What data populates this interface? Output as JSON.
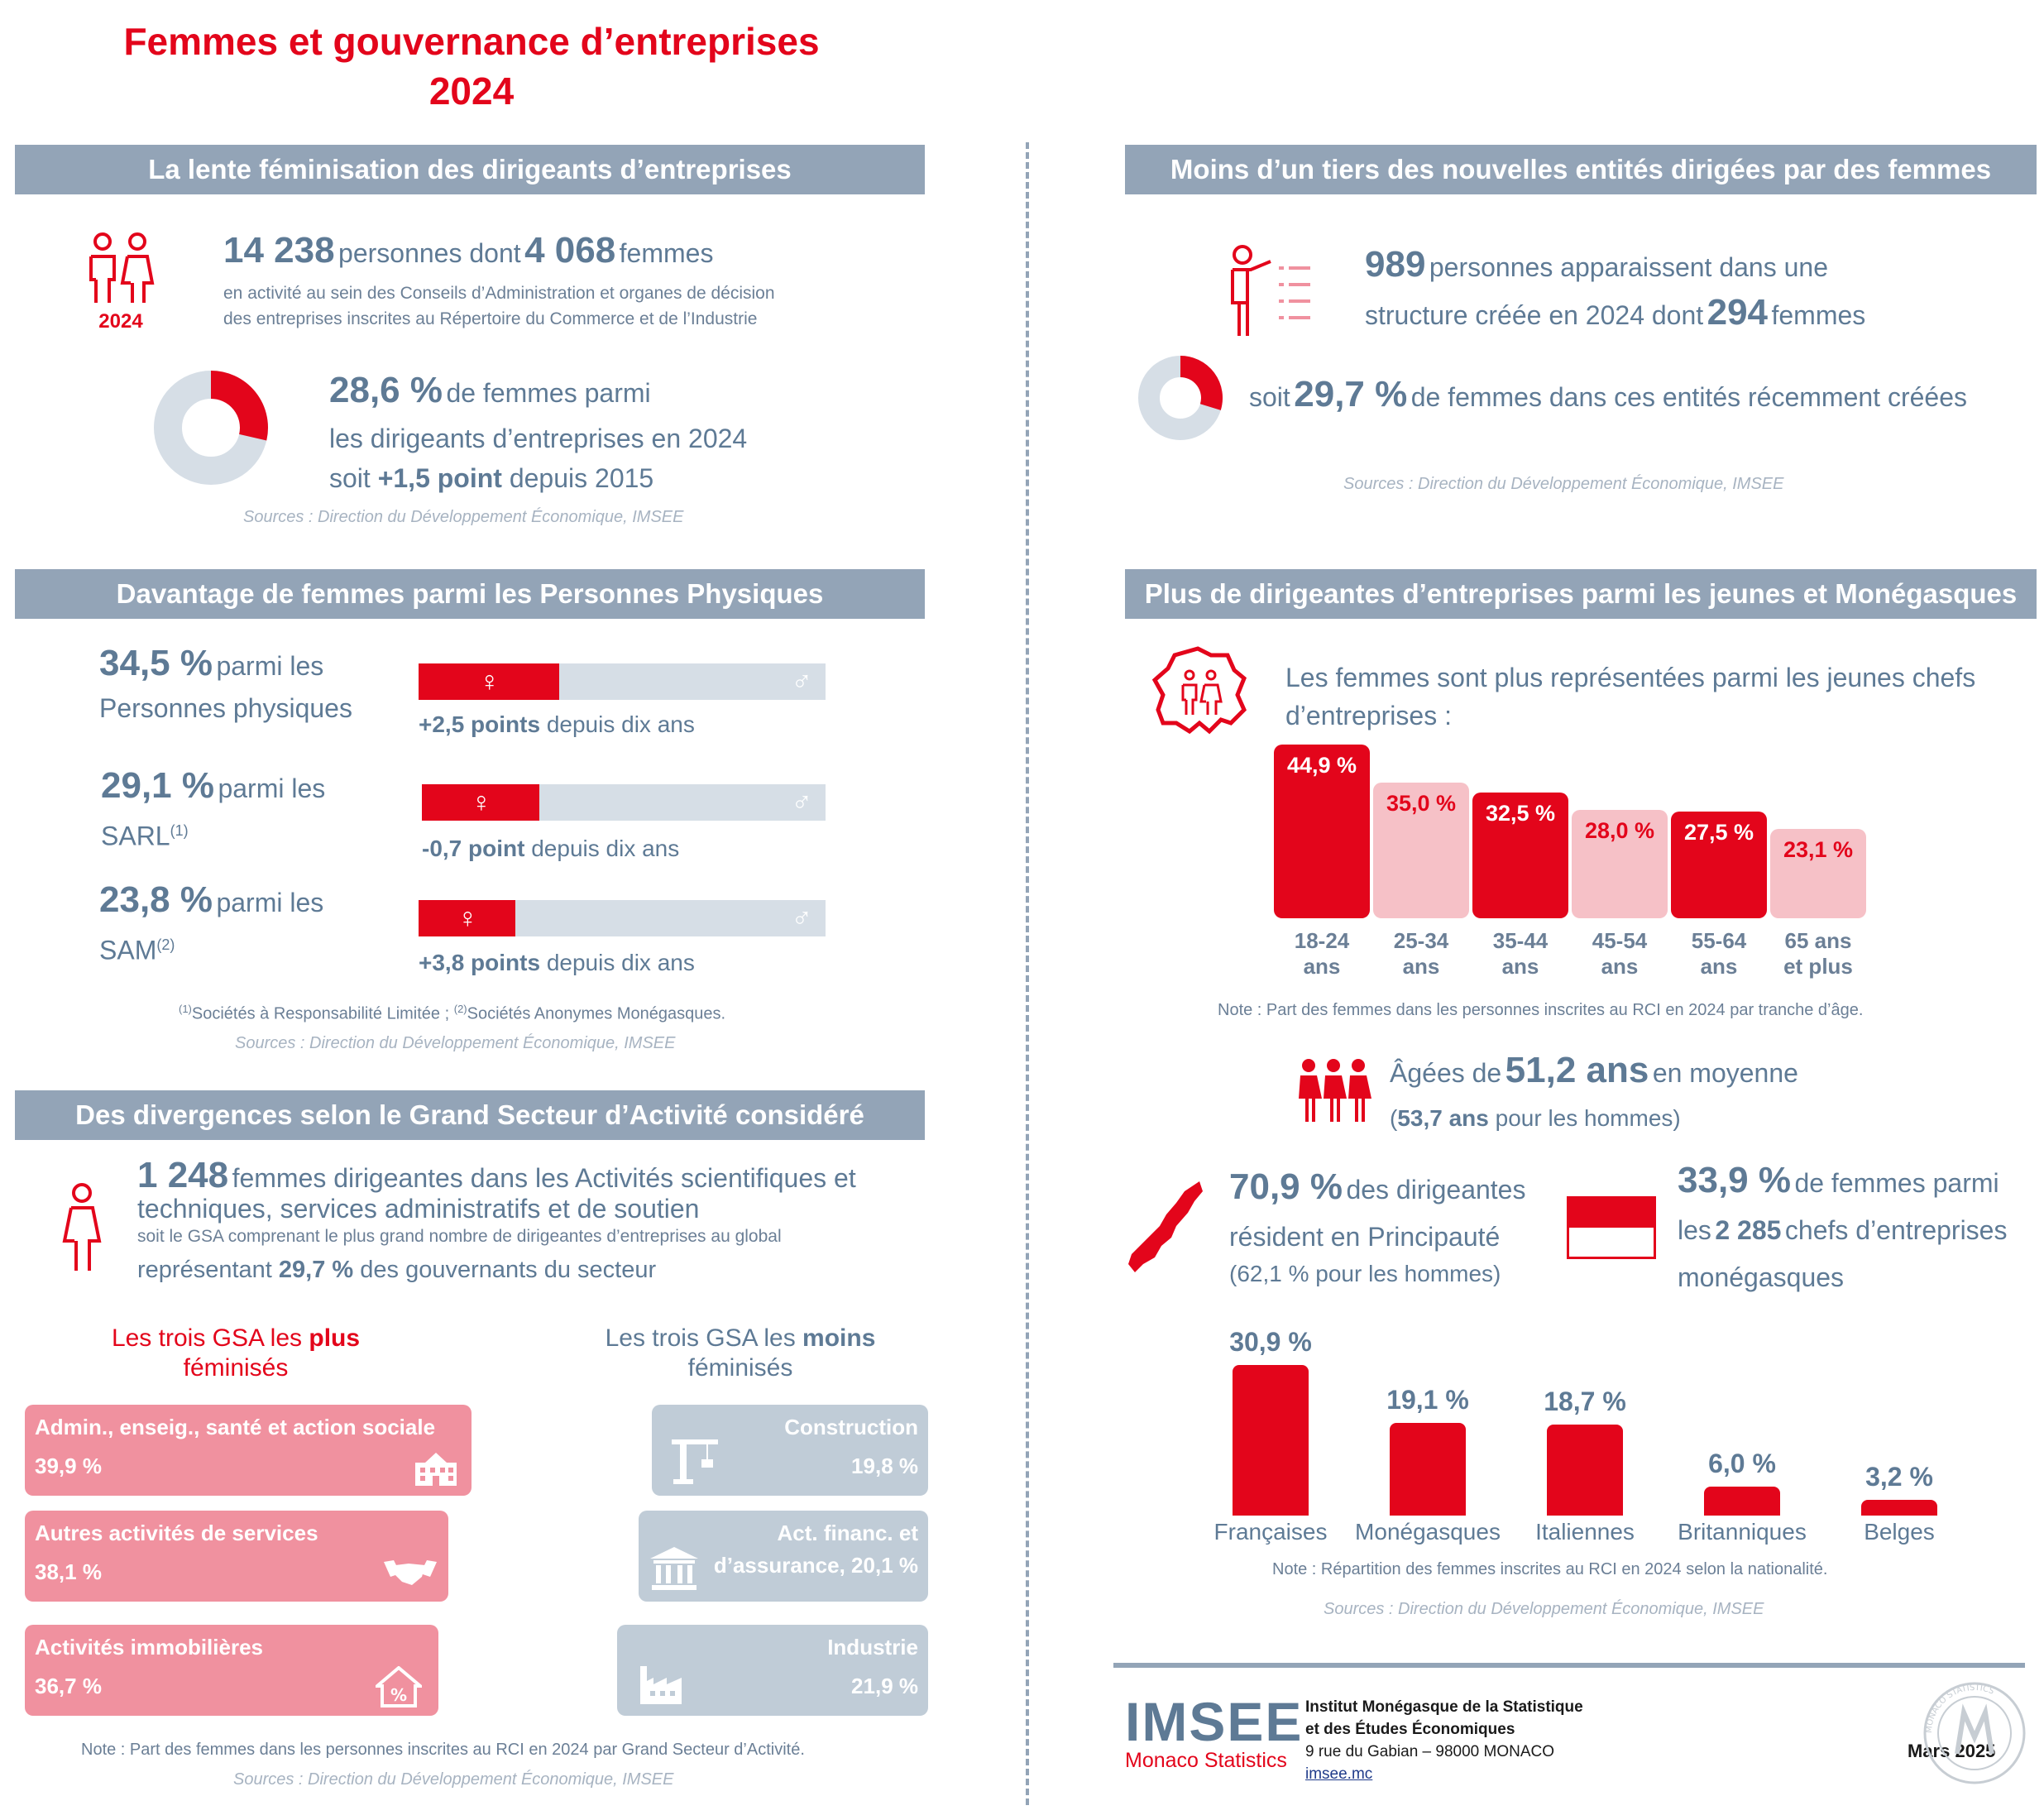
{
  "header": {
    "title_line1": "Femmes et gouvernance d’entreprises",
    "title_line2": "2024"
  },
  "colors": {
    "accent": "#e3051b",
    "slate": "#5e7a95",
    "band": "#93a4b7",
    "pink": "#f0919f",
    "light_pink": "#f6c1c7",
    "grey_card": "#c0ccd7",
    "bar_bg": "#d6dee6"
  },
  "s1": {
    "band": "La lente féminisation des dirigeants d’entreprises",
    "icon_year": "2024",
    "n_people": "14 238",
    "t_people": "personnes dont",
    "n_women": "4 068",
    "t_women": "femmes",
    "desc1": "en activité au sein des Conseils d’Administration et organes de décision",
    "desc2": "des entreprises inscrites au Répertoire du Commerce et de l’Industrie",
    "pct": "28,6 %",
    "pct_text": "de femmes parmi",
    "line2": "les dirigeants d’entreprises en 2024",
    "line3_a": "soit",
    "line3_b": "+1,5 point",
    "line3_c": "depuis 2015",
    "share": 0.286,
    "source": "Sources : Direction du Développement Économique, IMSEE"
  },
  "s2": {
    "band": "Davantage de femmes parmi les Personnes Physiques",
    "rows": [
      {
        "pct": "34,5 %",
        "txt": "parmi les",
        "lbl": "Personnes physiques",
        "sup": "",
        "share": 0.345,
        "chg_b": "+2,5 points",
        "chg_t": "depuis dix ans"
      },
      {
        "pct": "29,1 %",
        "txt": "parmi les",
        "lbl": "SARL",
        "sup": "(1)",
        "share": 0.291,
        "chg_b": "-0,7 point",
        "chg_t": "depuis dix ans"
      },
      {
        "pct": "23,8 %",
        "txt": "parmi les",
        "lbl": "SAM",
        "sup": "(2)",
        "share": 0.238,
        "chg_b": "+3,8 points",
        "chg_t": "depuis dix ans"
      }
    ],
    "female_symbol": "♀",
    "male_symbol": "♂",
    "foot_sup1": "(1)",
    "foot_1": "Sociétés à Responsabilité Limitée ; ",
    "foot_sup2": "(2)",
    "foot_2": "Sociétés Anonymes Monégasques.",
    "source": "Sources : Direction du Développement Économique, IMSEE"
  },
  "s3": {
    "band": "Des divergences selon le Grand Secteur d’Activité considéré",
    "n": "1 248",
    "l1": "femmes dirigeantes dans les Activités scientifiques et",
    "l2": "techniques, services administratifs et de soutien",
    "l3": "soit le GSA comprenant le plus grand nombre de dirigeantes d’entreprises au global",
    "l4_a": "représentant",
    "l4_b": "29,7 %",
    "l4_c": "des gouvernants du secteur",
    "plus_a": "Les trois GSA les",
    "plus_b": "plus",
    "plus_c": "féminisés",
    "moins_a": "Les trois GSA les",
    "moins_b": "moins",
    "moins_c": "féminisés",
    "top": [
      {
        "name": "Admin., enseig., santé et action sociale",
        "value": "39,9 %",
        "icon": "building-icon"
      },
      {
        "name": "Autres activités de services",
        "value": "38,1 %",
        "icon": "handshake-icon"
      },
      {
        "name": "Activités immobilières",
        "value": "36,7 %",
        "icon": "house-percent-icon"
      }
    ],
    "bottom": [
      {
        "name": "Construction",
        "value": "19,8 %",
        "icon": "crane-icon"
      },
      {
        "name1": "Act. financ. et",
        "name2": "d’assurance, 20,1 %",
        "icon": "bank-icon"
      },
      {
        "name": "Industrie",
        "value": "21,9 %",
        "icon": "factory-icon"
      }
    ],
    "note": "Note : Part des femmes dans les personnes inscrites au RCI en 2024 par Grand Secteur d’Activité.",
    "source": "Sources : Direction du Développement Économique, IMSEE"
  },
  "s4": {
    "band": "Moins d’un tiers des nouvelles entités dirigées par des femmes",
    "n": "989",
    "t1": "personnes apparaissent dans une",
    "t2": "structure créée en 2024 dont",
    "n2": "294",
    "t3": "femmes",
    "soit": "soit",
    "pct": "29,7 %",
    "pct_t": "de femmes dans ces entités récemment créées",
    "share": 0.297,
    "source": "Sources : Direction du Développement Économique, IMSEE"
  },
  "s5": {
    "band": "Plus de dirigeantes d’entreprises parmi les jeunes et Monégasques",
    "intro1": "Les femmes sont plus représentées parmi les jeunes chefs",
    "intro2": "d’entreprises :",
    "note_age": "Note : Part des femmes dans les personnes inscrites au RCI en 2024 par tranche d’âge.",
    "age_a": "Âgées de",
    "age_b": "51,2 ans",
    "age_c": "en moyenne",
    "age_d1": "(",
    "age_d2": "53,7 ans",
    "age_d3": "pour les hommes)",
    "res_pct": "70,9 %",
    "res_t1": "des dirigeantes",
    "res_t2": "résident en Principauté",
    "res_t3": "(62,1 % pour les hommes)",
    "mon_pct": "33,9 %",
    "mon_t1": "de femmes parmi",
    "mon_t2a": "les",
    "mon_t2b": "2 285",
    "mon_t2c": "chefs d’entreprises",
    "mon_t3": "monégasques",
    "note_nat": "Note : Répartition des femmes inscrites au RCI en 2024 selon la nationalité.",
    "source": "Sources : Direction du Développement Économique, IMSEE"
  },
  "footer": {
    "logo": "IMSEE",
    "logo_sub": "Monaco Statistics",
    "inst1": "Institut Monégasque de la Statistique",
    "inst2": "et des Études Économiques",
    "addr": "9 rue du Gabian – 98000 MONACO",
    "url": "imsee.mc",
    "date": "Mars 2025",
    "seal_text": "MONACO STATISTICS"
  },
  "chart_data": [
    {
      "type": "bar",
      "categories": [
        "18-24 ans",
        "25-34 ans",
        "35-44 ans",
        "45-54 ans",
        "55-64 ans",
        "65 ans et plus"
      ],
      "cat_lines": [
        [
          "18-24",
          "ans"
        ],
        [
          "25-34",
          "ans"
        ],
        [
          "35-44",
          "ans"
        ],
        [
          "45-54",
          "ans"
        ],
        [
          "55-64",
          "ans"
        ],
        [
          "65 ans",
          "et plus"
        ]
      ],
      "values": [
        44.9,
        35.0,
        32.5,
        28.0,
        27.5,
        23.1
      ],
      "labels": [
        "44,9 %",
        "35,0 %",
        "32,5 %",
        "28,0 %",
        "27,5 %",
        "23,1 %"
      ],
      "colors": [
        "#e3051b",
        "#f6c1c7",
        "#e3051b",
        "#f6c1c7",
        "#e3051b",
        "#f6c1c7"
      ],
      "unit": "%"
    },
    {
      "type": "bar",
      "categories": [
        "Françaises",
        "Monégasques",
        "Italiennes",
        "Britanniques",
        "Belges"
      ],
      "values": [
        30.9,
        19.1,
        18.7,
        6.0,
        3.2
      ],
      "labels": [
        "30,9 %",
        "19,1 %",
        "18,7 %",
        "6,0 %",
        "3,2 %"
      ],
      "color": "#e3051b",
      "unit": "%"
    }
  ]
}
